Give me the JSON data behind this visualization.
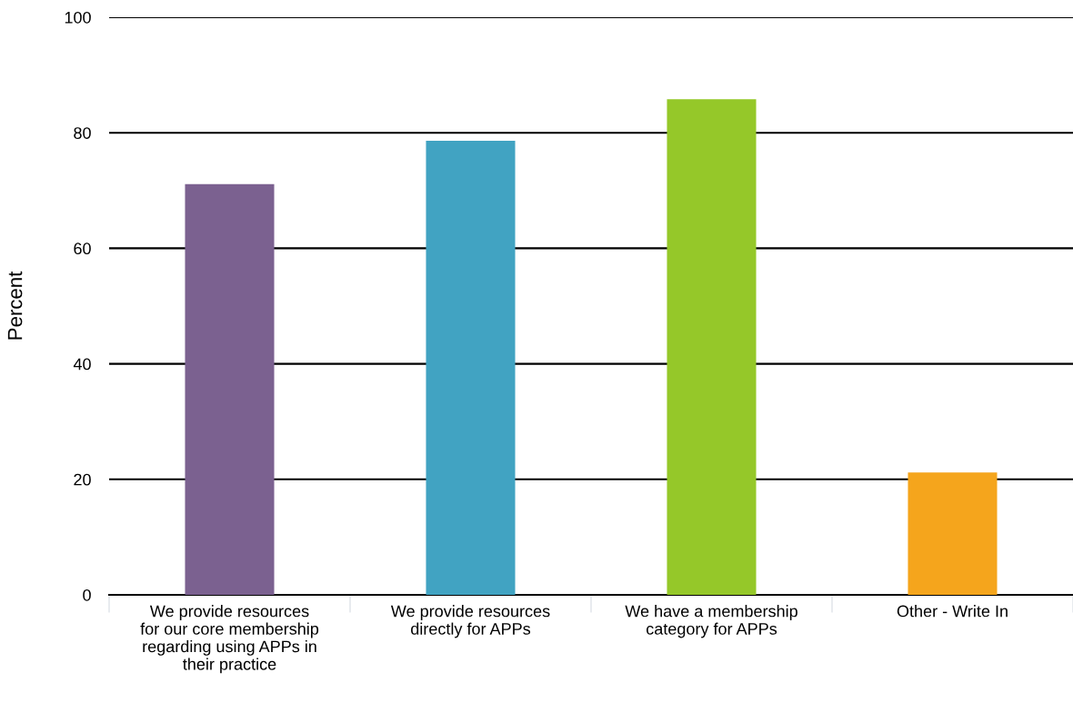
{
  "chart_data": {
    "type": "bar",
    "ylabel": "Percent",
    "categories": [
      "We provide resources\nfor our core membership\nregarding using APPs in\ntheir practice",
      "We provide resources\ndirectly for APPs",
      "We have a membership\ncategory for APPs",
      "Other - Write In"
    ],
    "values": [
      71.1,
      78.6,
      85.8,
      21.2
    ],
    "colors": [
      "#7b6190",
      "#41a3c2",
      "#95c829",
      "#f5a51c"
    ],
    "ylim": [
      0,
      100
    ],
    "yticks": [
      0,
      20,
      40,
      60,
      80,
      100
    ],
    "grid": "y"
  }
}
